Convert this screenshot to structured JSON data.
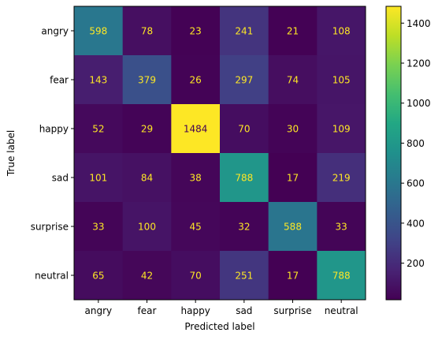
{
  "chart_data": {
    "type": "heatmap",
    "title": "",
    "xlabel": "Predicted label",
    "ylabel": "True label",
    "x_categories": [
      "angry",
      "fear",
      "happy",
      "sad",
      "surprise",
      "neutral"
    ],
    "y_categories": [
      "angry",
      "fear",
      "happy",
      "sad",
      "surprise",
      "neutral"
    ],
    "matrix": [
      [
        598,
        78,
        23,
        241,
        21,
        108
      ],
      [
        143,
        379,
        26,
        297,
        74,
        105
      ],
      [
        52,
        29,
        1484,
        70,
        30,
        109
      ],
      [
        101,
        84,
        38,
        788,
        17,
        219
      ],
      [
        33,
        100,
        45,
        32,
        588,
        33
      ],
      [
        65,
        42,
        70,
        251,
        17,
        788
      ]
    ],
    "colormap": "viridis",
    "colorbar": {
      "min": 17,
      "max": 1484,
      "ticks": [
        "200",
        "400",
        "600",
        "800",
        "1000",
        "1200",
        "1400"
      ]
    },
    "grid": false
  }
}
